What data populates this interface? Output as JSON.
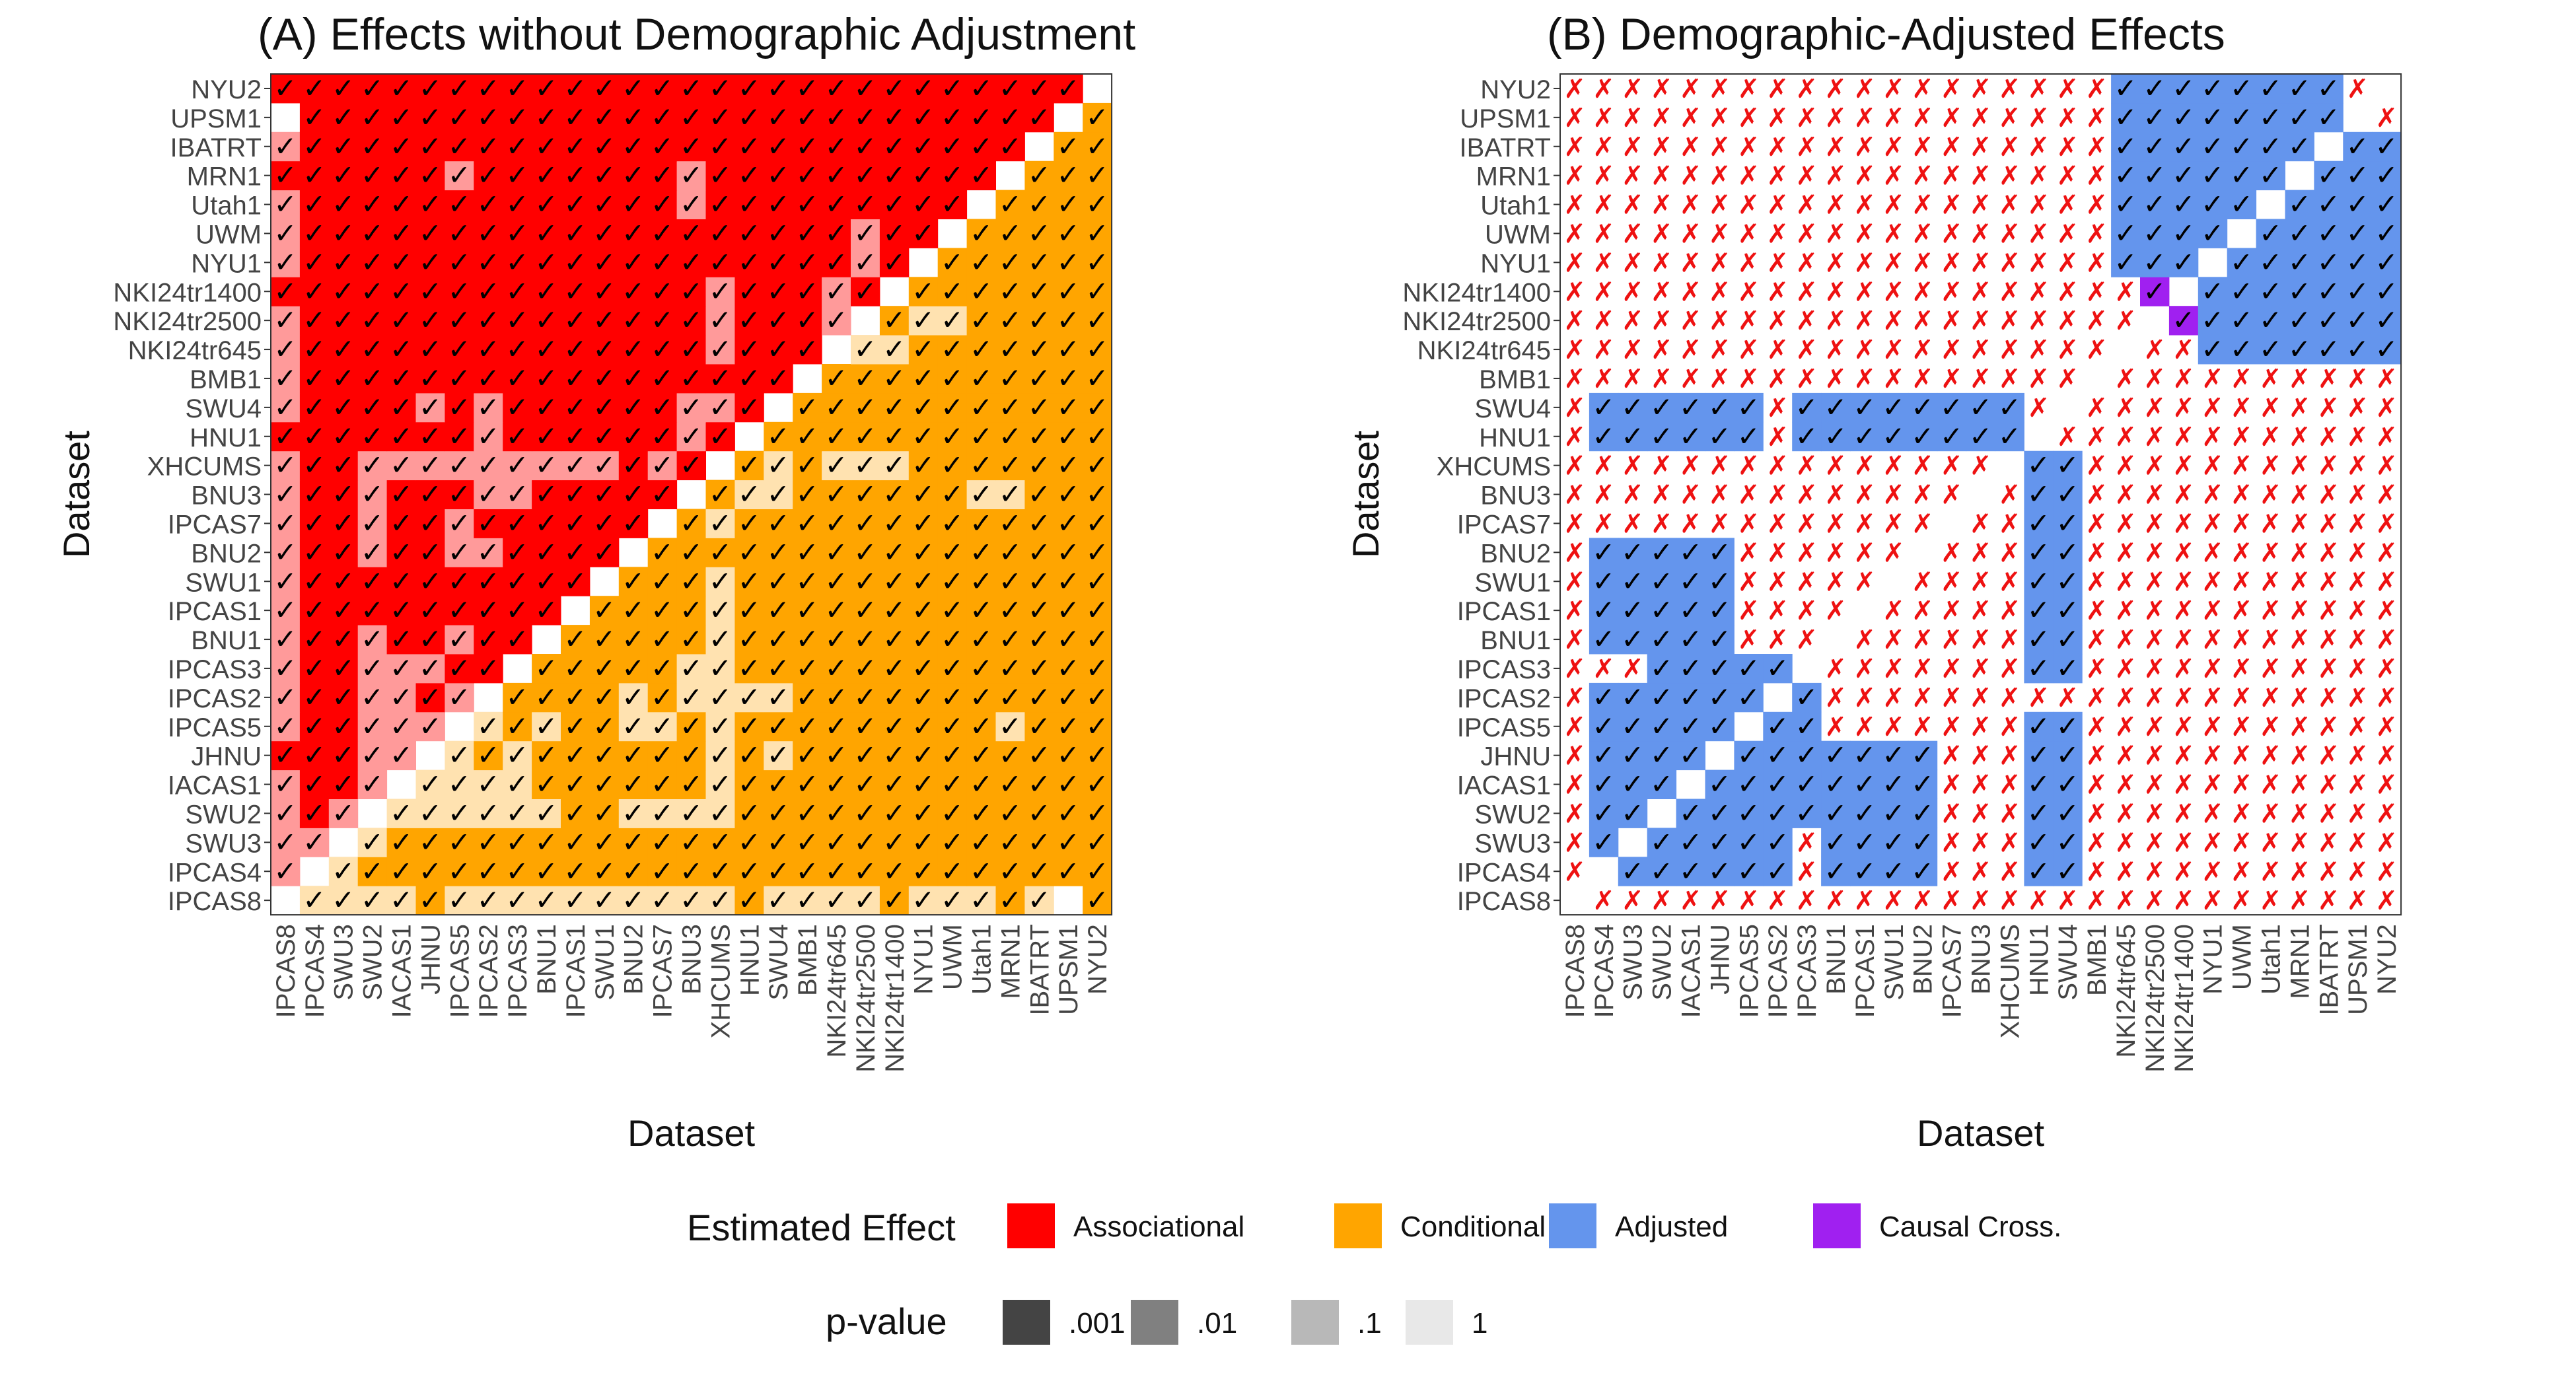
{
  "datasets": [
    "IPCAS8",
    "IPCAS4",
    "SWU3",
    "SWU2",
    "IACAS1",
    "JHNU",
    "IPCAS5",
    "IPCAS2",
    "IPCAS3",
    "BNU1",
    "IPCAS1",
    "SWU1",
    "BNU2",
    "IPCAS7",
    "BNU3",
    "XHCUMS",
    "HNU1",
    "SWU4",
    "BMB1",
    "NKI24tr645",
    "NKI24tr2500",
    "NKI24tr1400",
    "NYU1",
    "UWM",
    "Utah1",
    "MRN1",
    "IBATRT",
    "UPSM1",
    "NYU2"
  ],
  "panels": [
    {
      "title": "(A) Effects without Demographic Adjustment",
      "xlabel": "Dataset",
      "ylabel": "Dataset"
    },
    {
      "title": "(B) Demographic-Adjusted Effects",
      "xlabel": "Dataset",
      "ylabel": "Dataset"
    }
  ],
  "legend": {
    "effect_title": "Estimated Effect",
    "effect_items": [
      {
        "label": "Associational",
        "color": "#ff0000"
      },
      {
        "label": "Conditional",
        "color": "#ffa500"
      },
      {
        "label": "Adjusted",
        "color": "#6495ed"
      },
      {
        "label": "Causal Cross.",
        "color": "#a020f0"
      }
    ],
    "pvalue_title": "p-value",
    "pvalue_items": [
      {
        "label": ".001",
        "color": "#444444"
      },
      {
        "label": ".01",
        "color": "#808080"
      },
      {
        "label": ".1",
        "color": "#b8b8b8"
      },
      {
        "label": "1",
        "color": "#e8e8e8"
      }
    ]
  },
  "chart_data": [
    {
      "type": "heatmap",
      "title": "(A) Effects without Demographic Adjustment",
      "xlabel": "Dataset",
      "ylabel": "Dataset",
      "upper_triangle_effect": "Associational",
      "lower_triangle_effect": "Conditional",
      "faded_cells": [
        [
          0,
          1
        ],
        [
          0,
          2
        ],
        [
          0,
          3
        ],
        [
          0,
          4
        ],
        [
          0,
          6
        ],
        [
          0,
          7
        ],
        [
          0,
          8
        ],
        [
          0,
          9
        ],
        [
          0,
          10
        ],
        [
          0,
          11
        ],
        [
          0,
          12
        ],
        [
          0,
          13
        ],
        [
          0,
          14
        ],
        [
          0,
          15
        ],
        [
          0,
          17
        ],
        [
          0,
          18
        ],
        [
          0,
          19
        ],
        [
          0,
          20
        ],
        [
          0,
          22
        ],
        [
          0,
          23
        ],
        [
          0,
          24
        ],
        [
          0,
          26
        ],
        [
          2,
          1
        ],
        [
          2,
          3
        ],
        [
          1,
          2
        ],
        [
          3,
          2
        ],
        [
          3,
          4
        ],
        [
          3,
          5
        ],
        [
          3,
          6
        ],
        [
          3,
          7
        ],
        [
          3,
          8
        ],
        [
          3,
          9
        ],
        [
          3,
          12
        ],
        [
          3,
          13
        ],
        [
          3,
          14
        ],
        [
          3,
          15
        ],
        [
          4,
          5
        ],
        [
          4,
          6
        ],
        [
          4,
          7
        ],
        [
          4,
          8
        ],
        [
          4,
          15
        ],
        [
          5,
          6
        ],
        [
          5,
          8
        ],
        [
          5,
          15
        ],
        [
          5,
          17
        ],
        [
          6,
          7
        ],
        [
          6,
          9
        ],
        [
          6,
          12
        ],
        [
          6,
          13
        ],
        [
          6,
          15
        ],
        [
          6,
          25
        ],
        [
          7,
          12
        ],
        [
          7,
          14
        ],
        [
          7,
          15
        ],
        [
          7,
          16
        ],
        [
          7,
          17
        ],
        [
          8,
          14
        ],
        [
          8,
          15
        ],
        [
          9,
          15
        ],
        [
          10,
          15
        ],
        [
          11,
          15
        ],
        [
          14,
          16
        ],
        [
          14,
          17
        ],
        [
          14,
          24
        ],
        [
          14,
          25
        ],
        [
          13,
          15
        ],
        [
          15,
          17
        ],
        [
          15,
          19
        ],
        [
          15,
          20
        ],
        [
          15,
          21
        ],
        [
          19,
          20
        ],
        [
          19,
          21
        ],
        [
          20,
          22
        ],
        [
          20,
          23
        ]
      ],
      "empty_cells": [
        [
          0,
          27
        ]
      ],
      "checked": "all cells except diagonal and empty cells"
    },
    {
      "type": "heatmap",
      "title": "(B) Demographic-Adjusted Effects",
      "xlabel": "Dataset",
      "ylabel": "Dataset",
      "blue_blocks": [
        {
          "rows": [
            1,
            5
          ],
          "cols": [
            1,
            5
          ],
          "effect": "Adjusted"
        },
        {
          "rows": [
            1,
            5
          ],
          "cols": [
            9,
            12
          ],
          "effect": "Adjusted"
        },
        {
          "rows": [
            3,
            7
          ],
          "cols": [
            1,
            8
          ],
          "effect": "Adjusted"
        },
        {
          "rows": [
            16,
            17
          ],
          "cols": [
            1,
            6
          ],
          "effect": "Adjusted"
        },
        {
          "rows": [
            16,
            17
          ],
          "cols": [
            8,
            15
          ],
          "effect": "Adjusted"
        },
        {
          "rows": [
            22,
            28
          ],
          "cols": [
            19,
            26
          ],
          "effect": "Adjusted"
        }
      ],
      "purple_cells": [
        [
          20,
          21
        ],
        [
          21,
          20
        ]
      ],
      "checked": "cells inside blocks; remaining off-diagonal cells marked with red cross"
    }
  ]
}
